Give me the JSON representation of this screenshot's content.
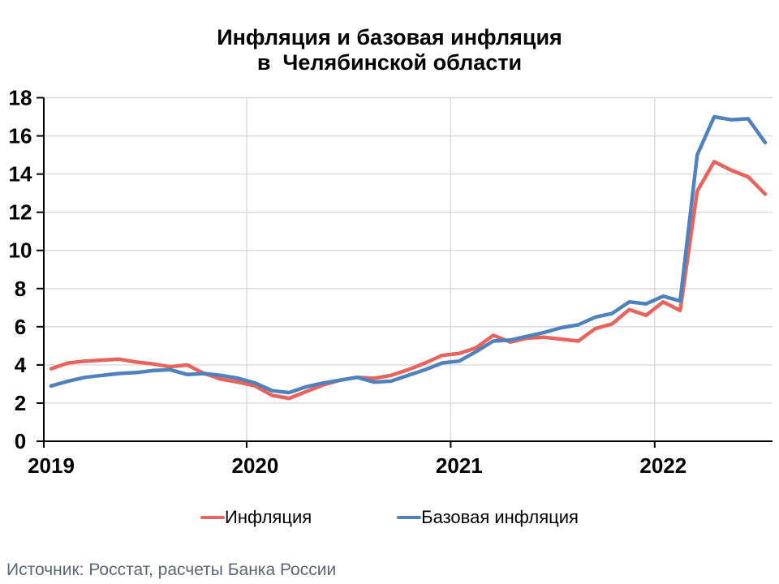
{
  "chart_data": {
    "type": "line",
    "title": "Инфляция и базовая инфляция\nв  Челябинской области",
    "x_range": {
      "start": "2019-01",
      "end": "2022-07",
      "frequency": "monthly"
    },
    "x_tick_labels": [
      "2019",
      "2020",
      "2021",
      "2022"
    ],
    "ylabel": "",
    "xlabel": "",
    "ylim": [
      0,
      18
    ],
    "y_ticks": [
      0,
      2,
      4,
      6,
      8,
      10,
      12,
      14,
      16,
      18
    ],
    "grid": {
      "horizontal": true,
      "vertical_at_year_boundaries": true
    },
    "legend_position": "bottom",
    "series": [
      {
        "name": "Инфляция",
        "color": "#E8635C",
        "values": [
          3.8,
          4.1,
          4.2,
          4.25,
          4.3,
          4.15,
          4.05,
          3.9,
          4.0,
          3.55,
          3.25,
          3.1,
          2.9,
          2.4,
          2.25,
          2.6,
          2.95,
          3.2,
          3.35,
          3.3,
          3.45,
          3.75,
          4.1,
          4.5,
          4.6,
          4.9,
          5.55,
          5.2,
          5.4,
          5.45,
          5.35,
          5.25,
          5.9,
          6.15,
          6.9,
          6.6,
          7.3,
          6.85,
          13.1,
          14.65,
          14.2,
          13.85,
          12.95
        ]
      },
      {
        "name": "Базовая инфляция",
        "color": "#4F81BD",
        "values": [
          2.9,
          3.15,
          3.35,
          3.45,
          3.55,
          3.6,
          3.7,
          3.75,
          3.5,
          3.55,
          3.45,
          3.3,
          3.05,
          2.65,
          2.55,
          2.85,
          3.05,
          3.2,
          3.35,
          3.1,
          3.15,
          3.45,
          3.75,
          4.1,
          4.2,
          4.7,
          5.25,
          5.3,
          5.5,
          5.7,
          5.95,
          6.1,
          6.5,
          6.7,
          7.3,
          7.2,
          7.6,
          7.35,
          15.0,
          17.0,
          16.85,
          16.9,
          15.65
        ]
      }
    ]
  },
  "footer": {
    "source": "Источник: Росстат, расчеты Банка России"
  },
  "colors": {
    "background": "#FFFFFF",
    "axis": "#000000",
    "grid": "#D9D9D9",
    "tick_label": "#000000",
    "source_text": "#5D6673"
  }
}
